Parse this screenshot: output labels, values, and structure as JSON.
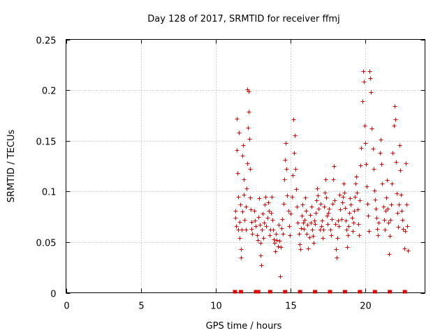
{
  "chart_data": {
    "type": "scatter",
    "title": "Day 128 of 2017, SRMTID for receiver ffmj",
    "xlabel": "GPS time / hours",
    "ylabel": "SRMTID / TECUs",
    "xlim": [
      0,
      24
    ],
    "ylim": [
      0,
      0.25
    ],
    "x_ticks": [
      "0",
      "5",
      "10",
      "15",
      "20"
    ],
    "x_tick_values": [
      0,
      5,
      10,
      15,
      20
    ],
    "y_ticks": [
      "0",
      "0.05",
      "0.1",
      "0.15",
      "0.2",
      "0.25"
    ],
    "y_tick_values": [
      0,
      0.05,
      0.1,
      0.15,
      0.2,
      0.25
    ],
    "grid": true,
    "legend": "none",
    "color": "#e00000",
    "marker": "+",
    "series": [
      {
        "points": [
          [
            11.3,
            0.074
          ],
          [
            11.3,
            0.081
          ],
          [
            11.35,
            0.066
          ],
          [
            11.4,
            0.172
          ],
          [
            11.4,
            0.141
          ],
          [
            11.45,
            0.118
          ],
          [
            11.5,
            0.062
          ],
          [
            11.5,
            0.095
          ],
          [
            11.55,
            0.158
          ],
          [
            11.6,
            0.07
          ],
          [
            11.6,
            0.054
          ],
          [
            11.65,
            0.087
          ],
          [
            11.7,
            0.043
          ],
          [
            11.7,
            0.035
          ],
          [
            11.75,
            0.062
          ],
          [
            11.8,
            0.08
          ],
          [
            11.8,
            0.135
          ],
          [
            11.85,
            0.146
          ],
          [
            11.9,
            0.112
          ],
          [
            11.9,
            0.097
          ],
          [
            11.95,
            0.072
          ],
          [
            12.0,
            0.062
          ],
          [
            12.0,
            0.085
          ],
          [
            12.05,
            0.103
          ],
          [
            12.1,
            0.128
          ],
          [
            12.1,
            0.201
          ],
          [
            12.15,
            0.163
          ],
          [
            12.2,
            0.199
          ],
          [
            12.2,
            0.179
          ],
          [
            12.25,
            0.152
          ],
          [
            12.3,
            0.122
          ],
          [
            12.3,
            0.094
          ],
          [
            12.35,
            0.082
          ],
          [
            12.4,
            0.07
          ],
          [
            12.4,
            0.063
          ],
          [
            12.45,
            0.058
          ],
          [
            12.6,
            0.081
          ],
          [
            12.65,
            0.071
          ],
          [
            12.7,
            0.066
          ],
          [
            12.75,
            0.057
          ],
          [
            12.8,
            0.052
          ],
          [
            12.85,
            0.075
          ],
          [
            12.9,
            0.093
          ],
          [
            12.95,
            0.067
          ],
          [
            13.0,
            0.049
          ],
          [
            13.0,
            0.037
          ],
          [
            13.05,
            0.027
          ],
          [
            13.1,
            0.062
          ],
          [
            13.15,
            0.078
          ],
          [
            13.2,
            0.054
          ],
          [
            13.25,
            0.069
          ],
          [
            13.3,
            0.087
          ],
          [
            13.35,
            0.095
          ],
          [
            13.4,
            0.066
          ],
          [
            13.45,
            0.074
          ],
          [
            13.5,
            0.089
          ],
          [
            13.55,
            0.081
          ],
          [
            13.6,
            0.057
          ],
          [
            13.65,
            0.062
          ],
          [
            13.7,
            0.079
          ],
          [
            13.75,
            0.095
          ],
          [
            13.8,
            0.072
          ],
          [
            13.85,
            0.062
          ],
          [
            13.9,
            0.053
          ],
          [
            13.95,
            0.049
          ],
          [
            14.0,
            0.041
          ],
          [
            14.05,
            0.058
          ],
          [
            14.1,
            0.052
          ],
          [
            14.15,
            0.046
          ],
          [
            14.2,
            0.067
          ],
          [
            14.25,
            0.051
          ],
          [
            14.3,
            0.016
          ],
          [
            14.35,
            0.045
          ],
          [
            14.4,
            0.064
          ],
          [
            14.45,
            0.073
          ],
          [
            14.5,
            0.058
          ],
          [
            14.55,
            0.088
          ],
          [
            14.6,
            0.112
          ],
          [
            14.65,
            0.131
          ],
          [
            14.7,
            0.148
          ],
          [
            14.75,
            0.122
          ],
          [
            14.8,
            0.096
          ],
          [
            14.85,
            0.081
          ],
          [
            14.9,
            0.066
          ],
          [
            14.95,
            0.057
          ],
          [
            15.0,
            0.078
          ],
          [
            15.1,
            0.095
          ],
          [
            15.15,
            0.116
          ],
          [
            15.2,
            0.171
          ],
          [
            15.25,
            0.138
          ],
          [
            15.3,
            0.155
          ],
          [
            15.35,
            0.122
          ],
          [
            15.4,
            0.102
          ],
          [
            15.45,
            0.085
          ],
          [
            15.5,
            0.069
          ],
          [
            15.55,
            0.058
          ],
          [
            15.6,
            0.048
          ],
          [
            15.65,
            0.043
          ],
          [
            15.7,
            0.064
          ],
          [
            15.75,
            0.076
          ],
          [
            15.8,
            0.087
          ],
          [
            15.85,
            0.069
          ],
          [
            15.9,
            0.063
          ],
          [
            15.95,
            0.072
          ],
          [
            16.0,
            0.094
          ],
          [
            16.05,
            0.081
          ],
          [
            16.1,
            0.058
          ],
          [
            16.15,
            0.067
          ],
          [
            16.2,
            0.044
          ],
          [
            16.25,
            0.055
          ],
          [
            16.3,
            0.077
          ],
          [
            16.35,
            0.069
          ],
          [
            16.4,
            0.085
          ],
          [
            16.45,
            0.062
          ],
          [
            16.5,
            0.056
          ],
          [
            16.55,
            0.049
          ],
          [
            16.6,
            0.071
          ],
          [
            16.65,
            0.068
          ],
          [
            16.7,
            0.079
          ],
          [
            16.75,
            0.091
          ],
          [
            16.8,
            0.103
          ],
          [
            16.85,
            0.096
          ],
          [
            16.9,
            0.083
          ],
          [
            16.95,
            0.062
          ],
          [
            17.0,
            0.088
          ],
          [
            17.05,
            0.066
          ],
          [
            17.1,
            0.071
          ],
          [
            17.15,
            0.054
          ],
          [
            17.2,
            0.062
          ],
          [
            17.25,
            0.085
          ],
          [
            17.3,
            0.099
          ],
          [
            17.35,
            0.112
          ],
          [
            17.4,
            0.094
          ],
          [
            17.45,
            0.076
          ],
          [
            17.5,
            0.068
          ],
          [
            17.55,
            0.079
          ],
          [
            17.6,
            0.083
          ],
          [
            17.65,
            0.062
          ],
          [
            17.7,
            0.057
          ],
          [
            17.75,
            0.073
          ],
          [
            17.8,
            0.088
          ],
          [
            17.85,
            0.112
          ],
          [
            17.9,
            0.125
          ],
          [
            17.95,
            0.091
          ],
          [
            18.0,
            0.068
          ],
          [
            18.05,
            0.043
          ],
          [
            18.1,
            0.035
          ],
          [
            18.15,
            0.054
          ],
          [
            18.2,
            0.071
          ],
          [
            18.25,
            0.066
          ],
          [
            18.3,
            0.097
          ],
          [
            18.35,
            0.082
          ],
          [
            18.4,
            0.073
          ],
          [
            18.45,
            0.089
          ],
          [
            18.5,
            0.095
          ],
          [
            18.55,
            0.108
          ],
          [
            18.6,
            0.099
          ],
          [
            18.65,
            0.084
          ],
          [
            18.7,
            0.071
          ],
          [
            18.75,
            0.062
          ],
          [
            18.8,
            0.045
          ],
          [
            18.85,
            0.057
          ],
          [
            18.9,
            0.066
          ],
          [
            18.95,
            0.079
          ],
          [
            19.0,
            0.093
          ],
          [
            19.05,
            0.087
          ],
          [
            19.1,
            0.074
          ],
          [
            19.15,
            0.061
          ],
          [
            19.2,
            0.069
          ],
          [
            19.25,
            0.081
          ],
          [
            19.3,
            0.095
          ],
          [
            19.35,
            0.108
          ],
          [
            19.4,
            0.115
          ],
          [
            19.45,
            0.099
          ],
          [
            19.5,
            0.082
          ],
          [
            19.55,
            0.068
          ],
          [
            19.6,
            0.057
          ],
          [
            19.65,
            0.091
          ],
          [
            19.7,
            0.126
          ],
          [
            19.75,
            0.143
          ],
          [
            19.8,
            0.189
          ],
          [
            19.85,
            0.219
          ],
          [
            19.9,
            0.208
          ],
          [
            19.95,
            0.165
          ],
          [
            20.0,
            0.148
          ],
          [
            20.05,
            0.127
          ],
          [
            20.1,
            0.105
          ],
          [
            20.15,
            0.088
          ],
          [
            20.2,
            0.076
          ],
          [
            20.25,
            0.061
          ],
          [
            20.3,
            0.219
          ],
          [
            20.35,
            0.212
          ],
          [
            20.4,
            0.198
          ],
          [
            20.45,
            0.162
          ],
          [
            20.5,
            0.142
          ],
          [
            20.55,
            0.122
          ],
          [
            20.6,
            0.101
          ],
          [
            20.65,
            0.092
          ],
          [
            20.7,
            0.083
          ],
          [
            20.75,
            0.074
          ],
          [
            20.8,
            0.063
          ],
          [
            20.85,
            0.057
          ],
          [
            20.9,
            0.069
          ],
          [
            21.0,
            0.138
          ],
          [
            21.05,
            0.151
          ],
          [
            21.1,
            0.127
          ],
          [
            21.15,
            0.108
          ],
          [
            21.2,
            0.085
          ],
          [
            21.25,
            0.072
          ],
          [
            21.3,
            0.062
          ],
          [
            21.35,
            0.081
          ],
          [
            21.4,
            0.094
          ],
          [
            21.45,
            0.111
          ],
          [
            21.5,
            0.083
          ],
          [
            21.55,
            0.069
          ],
          [
            21.6,
            0.038
          ],
          [
            21.65,
            0.056
          ],
          [
            21.7,
            0.072
          ],
          [
            21.75,
            0.087
          ],
          [
            21.8,
            0.108
          ],
          [
            21.85,
            0.138
          ],
          [
            21.9,
            0.165
          ],
          [
            21.95,
            0.184
          ],
          [
            22.0,
            0.171
          ],
          [
            22.05,
            0.129
          ],
          [
            22.1,
            0.098
          ],
          [
            22.15,
            0.079
          ],
          [
            22.2,
            0.065
          ],
          [
            22.25,
            0.087
          ],
          [
            22.3,
            0.146
          ],
          [
            22.35,
            0.121
          ],
          [
            22.4,
            0.097
          ],
          [
            22.45,
            0.081
          ],
          [
            22.5,
            0.072
          ],
          [
            22.55,
            0.063
          ],
          [
            22.6,
            0.044
          ],
          [
            22.65,
            0.061
          ],
          [
            22.7,
            0.128
          ],
          [
            22.75,
            0.087
          ],
          [
            22.8,
            0.066
          ],
          [
            22.85,
            0.042
          ]
        ]
      }
    ],
    "bottom_marks_x": [
      11.3,
      11.7,
      12.7,
      12.85,
      13.65,
      14.65,
      15.65,
      16.65,
      17.65,
      18.65,
      19.65,
      20.65,
      21.65,
      22.65
    ]
  }
}
